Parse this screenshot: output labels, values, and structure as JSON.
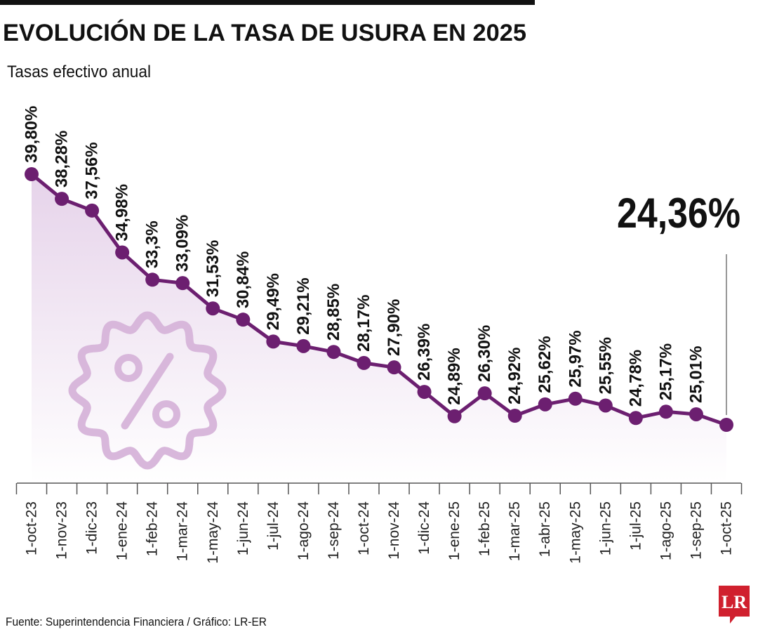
{
  "chart_data": {
    "type": "line",
    "title": "EVOLUCIÓN DE LA TASA DE USURA EN 2025",
    "subtitle": "Tasas efectivo anual",
    "source": "Fuente: Superintendencia Financiera / Gráfico: LR-ER",
    "logo": "LR",
    "categories": [
      "1-oct-23",
      "1-nov-23",
      "1-dic-23",
      "1-ene-24",
      "1-feb-24",
      "1-mar-24",
      "1-may-24",
      "1-jun-24",
      "1-jul-24",
      "1-ago-24",
      "1-sep-24",
      "1-oct-24",
      "1-nov-24",
      "1-dic-24",
      "1-ene-25",
      "1-feb-25",
      "1-mar-25",
      "1-abr-25",
      "1-may-25",
      "1-jun-25",
      "1-jul-25",
      "1-ago-25",
      "1-sep-25",
      "1-oct-25"
    ],
    "values": [
      39.8,
      38.28,
      37.56,
      34.98,
      33.3,
      33.09,
      31.53,
      30.84,
      29.49,
      29.21,
      28.85,
      28.17,
      27.9,
      26.39,
      24.89,
      26.3,
      24.92,
      25.62,
      25.97,
      25.55,
      24.78,
      25.17,
      25.01,
      24.36
    ],
    "value_labels": [
      "39,80%",
      "38,28%",
      "37,56%",
      "34,98%",
      "33,3%",
      "33,09%",
      "31,53%",
      "30,84%",
      "29,49%",
      "29,21%",
      "28,85%",
      "28,17%",
      "27,90%",
      "26,39%",
      "24,89%",
      "26,30%",
      "24,92%",
      "25,62%",
      "25,97%",
      "25,55%",
      "24,78%",
      "25,17%",
      "25,01%",
      "24,36%"
    ],
    "color": "#6c1f70"
  }
}
